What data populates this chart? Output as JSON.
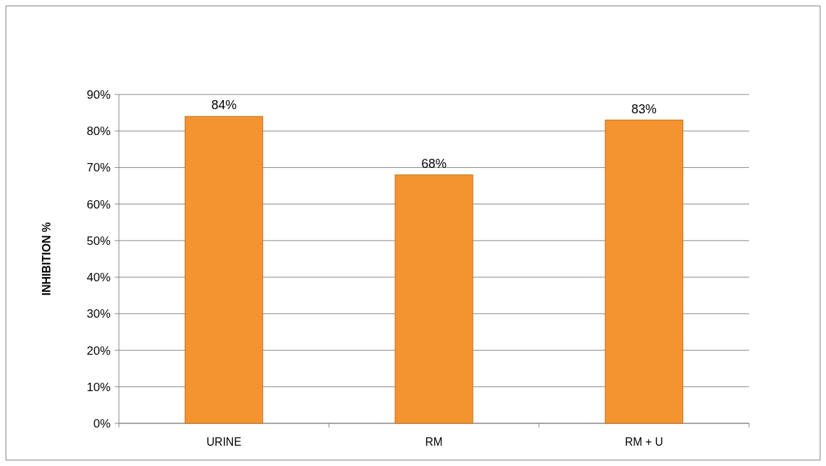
{
  "chart_data": {
    "type": "bar",
    "ylabel": "INHIBITION %",
    "categories": [
      "URINE",
      "RM",
      "RM + U"
    ],
    "values": [
      84,
      68,
      83
    ],
    "color": "#f39430",
    "value_labels": [
      "84%",
      "68%",
      "83%"
    ],
    "ylim": [
      0,
      90
    ],
    "yticks": [
      {
        "value": 0,
        "label": "0%"
      },
      {
        "value": 10,
        "label": "10%"
      },
      {
        "value": 20,
        "label": "20%"
      },
      {
        "value": 30,
        "label": "30%"
      },
      {
        "value": 40,
        "label": "40%"
      },
      {
        "value": 50,
        "label": "50%"
      },
      {
        "value": 60,
        "label": "60%"
      },
      {
        "value": 70,
        "label": "70%"
      },
      {
        "value": 80,
        "label": "80%"
      },
      {
        "value": 90,
        "label": "90%"
      }
    ],
    "grid": "y"
  }
}
